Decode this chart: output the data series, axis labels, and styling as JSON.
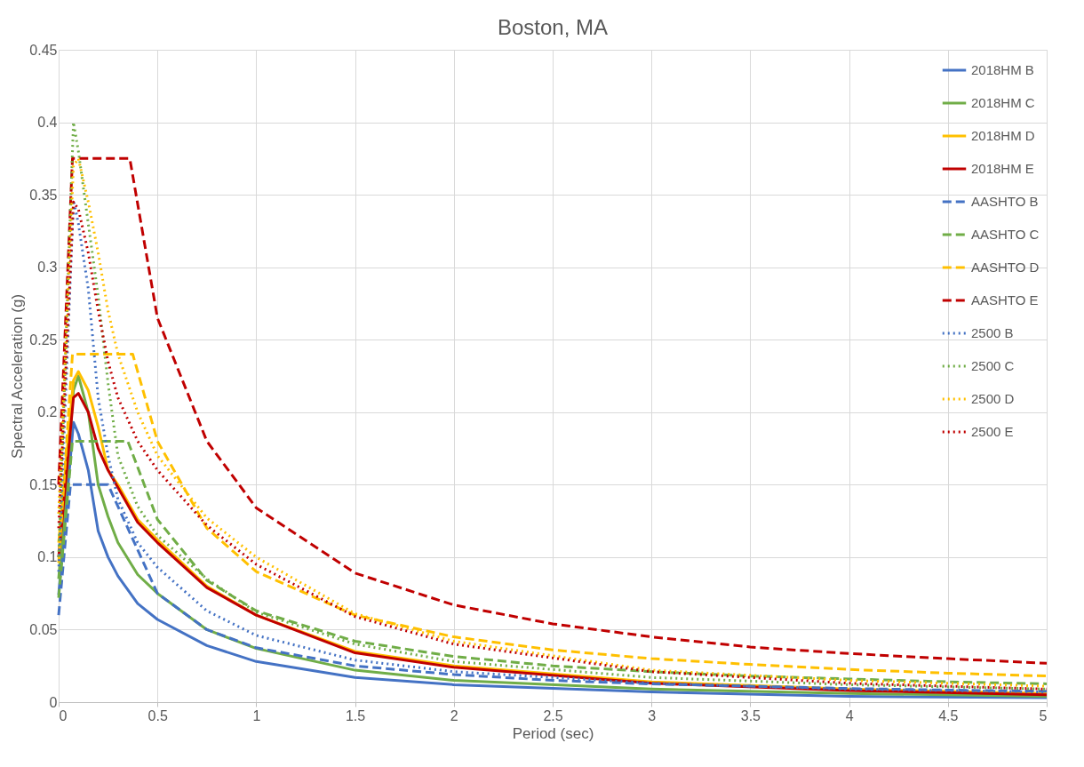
{
  "chart_data": {
    "type": "line",
    "title": "Boston, MA",
    "xlabel": "Period (sec)",
    "ylabel": "Spectral Acceleration (g)",
    "xlim": [
      0,
      5
    ],
    "xticks": [
      0,
      0.5,
      1,
      1.5,
      2,
      2.5,
      3,
      3.5,
      4,
      4.5,
      5
    ],
    "ylim": [
      0,
      0.45
    ],
    "yticks": [
      0,
      0.05,
      0.1,
      0.15,
      0.2,
      0.25,
      0.3,
      0.35,
      0.4,
      0.45
    ],
    "grid": true,
    "legend": "top right",
    "marker": "none",
    "series": [
      {
        "name": "2018HM B",
        "color": "#4472c4",
        "line_style": "solid",
        "x": [
          0,
          0.075,
          0.1,
          0.15,
          0.2,
          0.25,
          0.3,
          0.4,
          0.5,
          0.75,
          1,
          1.5,
          2,
          3,
          4,
          5
        ],
        "values": [
          0.074,
          0.193,
          0.185,
          0.16,
          0.118,
          0.1,
          0.087,
          0.068,
          0.057,
          0.039,
          0.028,
          0.017,
          0.012,
          0.007,
          0.004,
          0.003
        ]
      },
      {
        "name": "2018HM C",
        "color": "#70ad47",
        "line_style": "solid",
        "x": [
          0,
          0.075,
          0.1,
          0.15,
          0.2,
          0.25,
          0.3,
          0.4,
          0.5,
          0.75,
          1,
          1.5,
          2,
          3,
          4,
          5
        ],
        "values": [
          0.085,
          0.215,
          0.225,
          0.2,
          0.15,
          0.128,
          0.11,
          0.088,
          0.075,
          0.05,
          0.037,
          0.022,
          0.015,
          0.009,
          0.006,
          0.004
        ]
      },
      {
        "name": "2018HM D",
        "color": "#ffc000",
        "line_style": "solid",
        "x": [
          0,
          0.075,
          0.1,
          0.15,
          0.2,
          0.25,
          0.3,
          0.4,
          0.5,
          0.75,
          1,
          1.5,
          2,
          3,
          4,
          5
        ],
        "values": [
          0.11,
          0.222,
          0.228,
          0.215,
          0.19,
          0.16,
          0.15,
          0.126,
          0.112,
          0.08,
          0.06,
          0.035,
          0.025,
          0.014,
          0.009,
          0.006
        ]
      },
      {
        "name": "2018HM E",
        "color": "#c00000",
        "line_style": "solid",
        "x": [
          0,
          0.075,
          0.1,
          0.15,
          0.2,
          0.25,
          0.3,
          0.4,
          0.5,
          0.75,
          1,
          1.5,
          2,
          3,
          4,
          5
        ],
        "values": [
          0.1,
          0.21,
          0.213,
          0.2,
          0.175,
          0.16,
          0.148,
          0.124,
          0.11,
          0.079,
          0.06,
          0.034,
          0.024,
          0.013,
          0.008,
          0.005
        ]
      },
      {
        "name": "AASHTO B",
        "color": "#4472c4",
        "line_style": "dashed",
        "x": [
          0,
          0.06,
          0.25,
          0.5,
          0.75,
          1,
          1.5,
          2,
          2.5,
          3,
          3.5,
          4,
          4.5,
          5
        ],
        "values": [
          0.06,
          0.15,
          0.15,
          0.075,
          0.05,
          0.0375,
          0.025,
          0.019,
          0.015,
          0.0125,
          0.011,
          0.0094,
          0.0083,
          0.0075
        ]
      },
      {
        "name": "AASHTO C",
        "color": "#70ad47",
        "line_style": "dashed",
        "x": [
          0,
          0.07,
          0.35,
          0.5,
          0.75,
          1,
          1.5,
          2,
          2.5,
          3,
          3.5,
          4,
          4.5,
          5
        ],
        "values": [
          0.072,
          0.18,
          0.18,
          0.126,
          0.084,
          0.063,
          0.042,
          0.0315,
          0.025,
          0.021,
          0.018,
          0.016,
          0.014,
          0.0126
        ]
      },
      {
        "name": "AASHTO D",
        "color": "#ffc000",
        "line_style": "dashed",
        "x": [
          0,
          0.07,
          0.375,
          0.5,
          0.75,
          1,
          1.5,
          2,
          2.5,
          3,
          3.5,
          4,
          4.5,
          5
        ],
        "values": [
          0.096,
          0.24,
          0.24,
          0.18,
          0.12,
          0.09,
          0.06,
          0.045,
          0.036,
          0.03,
          0.026,
          0.0225,
          0.02,
          0.018
        ]
      },
      {
        "name": "AASHTO E",
        "color": "#c00000",
        "line_style": "dashed",
        "x": [
          0,
          0.07,
          0.36,
          0.5,
          0.75,
          1,
          1.5,
          2,
          2.5,
          3,
          3.5,
          4,
          4.5,
          5
        ],
        "values": [
          0.15,
          0.375,
          0.375,
          0.265,
          0.18,
          0.134,
          0.089,
          0.067,
          0.054,
          0.045,
          0.038,
          0.0335,
          0.03,
          0.0268
        ]
      },
      {
        "name": "2500 B",
        "color": "#4472c4",
        "line_style": "dotted",
        "x": [
          0,
          0.075,
          0.1,
          0.15,
          0.2,
          0.25,
          0.3,
          0.4,
          0.5,
          0.75,
          1,
          1.5,
          2,
          3,
          4,
          5
        ],
        "values": [
          0.09,
          0.346,
          0.33,
          0.285,
          0.21,
          0.17,
          0.14,
          0.11,
          0.093,
          0.063,
          0.046,
          0.029,
          0.021,
          0.013,
          0.009,
          0.007
        ]
      },
      {
        "name": "2500 C",
        "color": "#70ad47",
        "line_style": "dotted",
        "x": [
          0,
          0.075,
          0.1,
          0.15,
          0.2,
          0.25,
          0.3,
          0.4,
          0.5,
          0.75,
          1,
          1.5,
          2,
          3,
          4,
          5
        ],
        "values": [
          0.1,
          0.4,
          0.38,
          0.33,
          0.28,
          0.22,
          0.17,
          0.135,
          0.115,
          0.085,
          0.062,
          0.04,
          0.028,
          0.017,
          0.012,
          0.009
        ]
      },
      {
        "name": "2500 D",
        "color": "#ffc000",
        "line_style": "dotted",
        "x": [
          0,
          0.075,
          0.1,
          0.15,
          0.2,
          0.25,
          0.3,
          0.4,
          0.5,
          0.75,
          1,
          1.5,
          2,
          3,
          4,
          5
        ],
        "values": [
          0.13,
          0.37,
          0.375,
          0.345,
          0.31,
          0.27,
          0.24,
          0.2,
          0.17,
          0.127,
          0.1,
          0.061,
          0.042,
          0.022,
          0.015,
          0.011
        ]
      },
      {
        "name": "2500 E",
        "color": "#c00000",
        "line_style": "dotted",
        "x": [
          0,
          0.075,
          0.1,
          0.15,
          0.2,
          0.25,
          0.3,
          0.4,
          0.5,
          0.75,
          1,
          1.5,
          2,
          3,
          4,
          5
        ],
        "values": [
          0.12,
          0.345,
          0.34,
          0.31,
          0.27,
          0.235,
          0.21,
          0.18,
          0.16,
          0.122,
          0.095,
          0.059,
          0.04,
          0.021,
          0.013,
          0.009
        ]
      }
    ]
  }
}
